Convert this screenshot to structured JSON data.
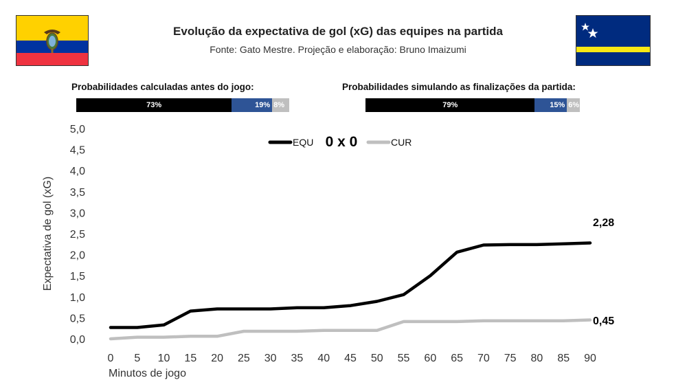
{
  "header": {
    "title": "Evolução da expectativa de gol (xG) das equipes na partida",
    "subtitle": "Fonte: Gato Mestre. Projeção e elaboração: Bruno Imaizumi"
  },
  "flags": {
    "left": {
      "name": "ecuador-flag",
      "colors": [
        "#FFD100",
        "#0033A0",
        "#EF3340"
      ]
    },
    "right": {
      "name": "curacao-flag",
      "colors": [
        "#002B7F",
        "#F9E814",
        "#FFFFFF"
      ]
    }
  },
  "probabilities": {
    "pre_match": {
      "label": "Probabilidades calculadas antes do jogo:",
      "segments": [
        {
          "team": "EQU",
          "value": 73,
          "text": "73%",
          "color": "#000000"
        },
        {
          "team": "draw",
          "value": 19,
          "text": "19%",
          "color": "#2E5496"
        },
        {
          "team": "CUR",
          "value": 8,
          "text": "8%",
          "color": "#BFBFBF"
        }
      ]
    },
    "simulated": {
      "label": "Probabilidades simulando as finalizações da partida:",
      "segments": [
        {
          "team": "EQU",
          "value": 79,
          "text": "79%",
          "color": "#000000"
        },
        {
          "team": "draw",
          "value": 15,
          "text": "15%",
          "color": "#2E5496"
        },
        {
          "team": "CUR",
          "value": 6,
          "text": "6%",
          "color": "#BFBFBF"
        }
      ]
    }
  },
  "chart_data": {
    "type": "line",
    "score": "0 x 0",
    "xlabel": "Minutos de jogo",
    "ylabel": "Expectativa de gol (xG)",
    "x": [
      0,
      5,
      10,
      15,
      20,
      25,
      30,
      35,
      40,
      45,
      50,
      55,
      60,
      65,
      70,
      75,
      80,
      85,
      90
    ],
    "xticks": [
      "0",
      "5",
      "10",
      "15",
      "20",
      "25",
      "30",
      "35",
      "40",
      "45",
      "50",
      "55",
      "60",
      "65",
      "70",
      "75",
      "80",
      "85",
      "90"
    ],
    "yticks": [
      "0,0",
      "0,5",
      "1,0",
      "1,5",
      "2,0",
      "2,5",
      "3,0",
      "3,5",
      "4,0",
      "4,5",
      "5,0"
    ],
    "ylim": [
      0,
      5
    ],
    "grid": false,
    "legend": "top-center",
    "series": [
      {
        "name": "EQU",
        "color": "#000000",
        "values": [
          0.27,
          0.27,
          0.33,
          0.66,
          0.71,
          0.71,
          0.71,
          0.74,
          0.74,
          0.79,
          0.89,
          1.05,
          1.5,
          2.06,
          2.23,
          2.24,
          2.24,
          2.26,
          2.28
        ],
        "end_label": "2,28"
      },
      {
        "name": "CUR",
        "color": "#BFBFBF",
        "values": [
          0.0,
          0.04,
          0.04,
          0.06,
          0.06,
          0.18,
          0.18,
          0.18,
          0.2,
          0.2,
          0.2,
          0.41,
          0.41,
          0.41,
          0.43,
          0.43,
          0.43,
          0.43,
          0.45
        ],
        "end_label": "0,45"
      }
    ]
  }
}
